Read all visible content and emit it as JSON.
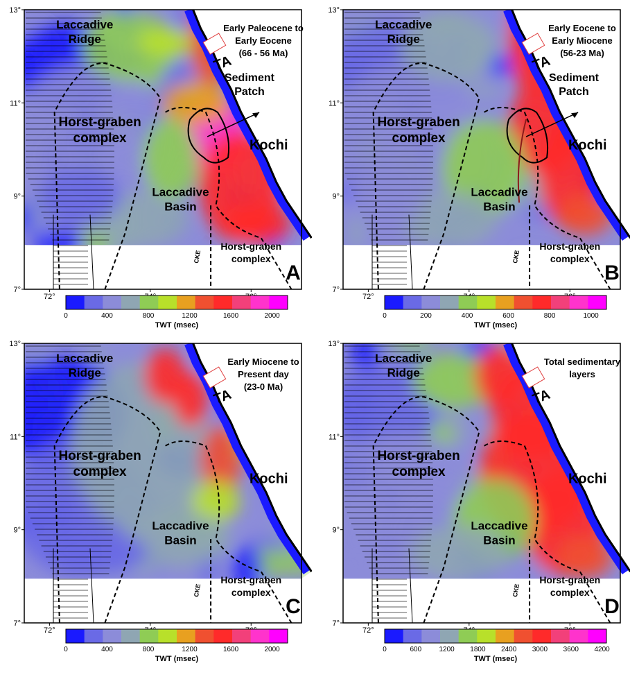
{
  "panels": [
    {
      "letter": "A",
      "title_lines": [
        "Early Paleocene to",
        "Early Eocene",
        "(66 - 56 Ma)"
      ],
      "colorbar": {
        "ticks": [
          "0",
          "400",
          "800",
          "1200",
          "1600",
          "2000"
        ],
        "label": "TWT (msec)"
      }
    },
    {
      "letter": "B",
      "title_lines": [
        "Early Eocene to",
        "Early Miocene",
        "(56-23 Ma)"
      ],
      "colorbar": {
        "ticks": [
          "0",
          "200",
          "400",
          "600",
          "800",
          "1000"
        ],
        "label": "TWT (msec)"
      }
    },
    {
      "letter": "C",
      "title_lines": [
        "Early Miocene to",
        "Present day",
        "(23-0 Ma)"
      ],
      "colorbar": {
        "ticks": [
          "0",
          "400",
          "800",
          "1200",
          "1600",
          "2000"
        ],
        "label": "TWT (msec)"
      }
    },
    {
      "letter": "D",
      "title_lines": [
        "Total sedimentary",
        "layers"
      ],
      "colorbar": {
        "ticks": [
          "0",
          "600",
          "1200",
          "1800",
          "2400",
          "3000",
          "3600",
          "4200"
        ],
        "label": "TWT (msec)"
      }
    }
  ],
  "labels": {
    "ridge": [
      "Laccadive",
      "Ridge"
    ],
    "horst": [
      "Horst-graben",
      "complex"
    ],
    "basin": [
      "Laccadive",
      "Basin"
    ],
    "horst_south": [
      "Horst-graben",
      "complex"
    ],
    "sediment": [
      "Sediment",
      "Patch"
    ],
    "city": "Kochi",
    "ta": "TA",
    "cke": "CKE"
  },
  "axes": {
    "lat_ticks": [
      "13°",
      "11°",
      "9°",
      "7°"
    ],
    "lon_ticks": [
      "72°",
      "74°",
      "76°"
    ]
  },
  "colors": {
    "ramp": [
      "#1a1aff",
      "#6a6ae6",
      "#8c8cd9",
      "#8fa6b3",
      "#8fcc55",
      "#b8e02a",
      "#e8a020",
      "#f05030",
      "#ff2a2a",
      "#f2407a",
      "#ff33cc",
      "#ff00ff"
    ],
    "land": "#ffffff",
    "coast": "#000000"
  }
}
